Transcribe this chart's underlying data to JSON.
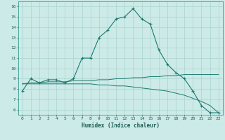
{
  "xlabel": "Humidex (Indice chaleur)",
  "bg_color": "#cceae7",
  "line_color": "#1a7a6e",
  "grid_color": "#aad4d0",
  "xlim": [
    -0.5,
    23.5
  ],
  "ylim": [
    5.5,
    16.5
  ],
  "xticks": [
    0,
    1,
    2,
    3,
    4,
    5,
    6,
    7,
    8,
    9,
    10,
    11,
    12,
    13,
    14,
    15,
    16,
    17,
    18,
    19,
    20,
    21,
    22,
    23
  ],
  "yticks": [
    6,
    7,
    8,
    9,
    10,
    11,
    12,
    13,
    14,
    15,
    16
  ],
  "curve1_x": [
    0,
    1,
    2,
    3,
    4,
    5,
    6,
    7,
    8,
    9,
    10,
    11,
    12,
    13,
    14,
    15,
    16,
    17,
    18,
    19,
    20,
    21,
    22,
    23
  ],
  "curve1_y": [
    7.8,
    9.0,
    8.6,
    8.9,
    8.9,
    8.6,
    9.0,
    11.0,
    11.0,
    13.0,
    13.7,
    14.8,
    15.0,
    15.8,
    14.8,
    14.3,
    11.8,
    10.4,
    9.6,
    9.0,
    7.8,
    6.4,
    5.7,
    5.7
  ],
  "curve2_x": [
    0,
    1,
    2,
    3,
    4,
    5,
    6,
    7,
    8,
    9,
    10,
    11,
    12,
    13,
    14,
    15,
    16,
    17,
    18,
    19,
    20,
    21,
    22,
    23
  ],
  "curve2_y": [
    8.5,
    8.6,
    8.6,
    8.7,
    8.7,
    8.7,
    8.8,
    8.8,
    8.8,
    8.9,
    8.9,
    9.0,
    9.0,
    9.1,
    9.1,
    9.2,
    9.2,
    9.3,
    9.3,
    9.4,
    9.4,
    9.4,
    9.4,
    9.4
  ],
  "curve3_x": [
    0,
    1,
    2,
    3,
    4,
    5,
    6,
    7,
    8,
    9,
    10,
    11,
    12,
    13,
    14,
    15,
    16,
    17,
    18,
    19,
    20,
    21,
    22,
    23
  ],
  "curve3_y": [
    8.5,
    8.5,
    8.5,
    8.5,
    8.5,
    8.5,
    8.5,
    8.5,
    8.5,
    8.4,
    8.4,
    8.3,
    8.3,
    8.2,
    8.1,
    8.0,
    7.9,
    7.8,
    7.6,
    7.4,
    7.1,
    6.8,
    6.4,
    5.7
  ]
}
